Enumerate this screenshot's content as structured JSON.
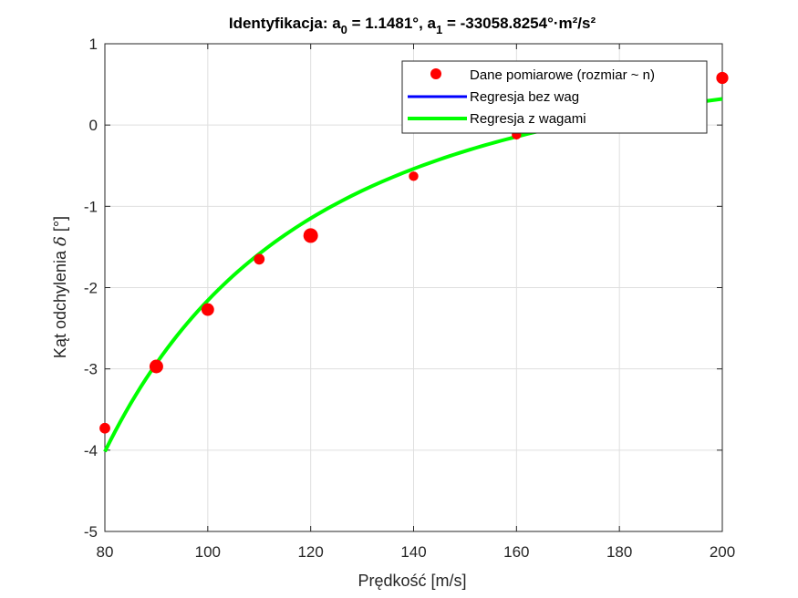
{
  "chart_data": {
    "type": "scatter",
    "title_parts": {
      "prefix": "Identyfikacja: a",
      "sub0": "0",
      "mid": " = 1.1481°, a",
      "sub1": "1",
      "suffix": " = -33058.8254°·m²/s²"
    },
    "xlabel": "Prędkość [m/s]",
    "ylabel_text": "Kąt odchylenia ",
    "ylabel_symbol": "δ",
    "ylabel_unit": " [°]",
    "xlim": [
      80,
      200
    ],
    "ylim": [
      -5,
      1
    ],
    "xticks": [
      80,
      100,
      120,
      140,
      160,
      180,
      200
    ],
    "yticks": [
      -5,
      -4,
      -3,
      -2,
      -1,
      0,
      1
    ],
    "grid": true,
    "legend_position": "top-right",
    "model": {
      "a0": 1.1481,
      "a1": -33058.8254
    },
    "series": [
      {
        "name": "Dane pomiarowe (rozmiar ~ n)",
        "kind": "points",
        "color": "#ff0000",
        "x": [
          80,
          90,
          100,
          110,
          120,
          140,
          160,
          200
        ],
        "y": [
          -3.73,
          -2.97,
          -2.27,
          -1.65,
          -1.36,
          -0.63,
          -0.12,
          0.58
        ],
        "n": [
          2.2,
          3.5,
          3.0,
          2.2,
          4.0,
          1.7,
          1.7,
          2.7
        ]
      },
      {
        "name": "Regresja bez wag",
        "kind": "line",
        "color": "#0000ff",
        "a0": 1.1481,
        "a1": -33058.8254,
        "x_range": [
          80,
          200
        ]
      },
      {
        "name": "Regresja z wagami",
        "kind": "line",
        "color": "#00ff00",
        "a0": 1.1481,
        "a1": -33058.8254,
        "x_range": [
          80,
          200
        ]
      }
    ]
  }
}
